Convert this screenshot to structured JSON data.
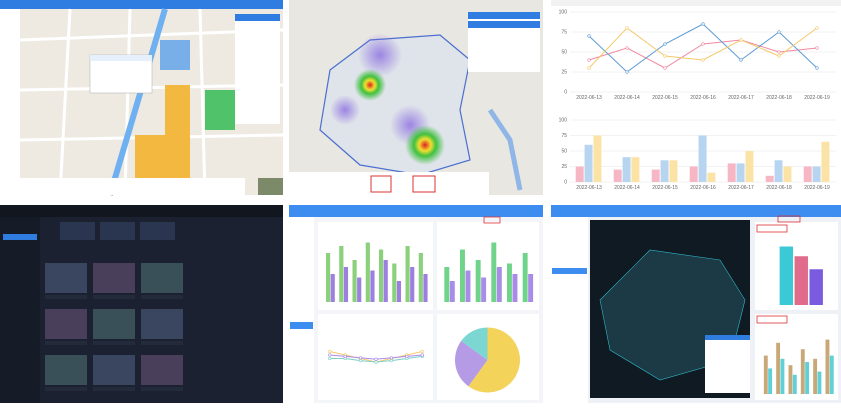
{
  "line_chart": {
    "type": "line",
    "categories": [
      "2022-06-13",
      "2022-06-14",
      "2022-06-15",
      "2022-06-16",
      "2022-06-17",
      "2022-06-18",
      "2022-06-19"
    ],
    "ylim": [
      0,
      100
    ],
    "yticks": [
      0,
      25,
      50,
      75,
      100
    ],
    "grid": true,
    "series": [
      {
        "color": "#f08aa0",
        "values": [
          40,
          55,
          30,
          60,
          65,
          50,
          55
        ]
      },
      {
        "color": "#5b9bd5",
        "values": [
          70,
          25,
          60,
          85,
          40,
          75,
          30
        ]
      },
      {
        "color": "#f5c96a",
        "values": [
          30,
          80,
          45,
          40,
          65,
          45,
          80
        ]
      }
    ]
  },
  "bar_chart": {
    "type": "bar",
    "categories": [
      "2022-06-13",
      "2022-06-14",
      "2022-06-15",
      "2022-06-16",
      "2022-06-17",
      "2022-06-18",
      "2022-06-19"
    ],
    "ylim": [
      0,
      100
    ],
    "yticks": [
      0,
      25,
      50,
      75,
      100
    ],
    "grid": true,
    "series": [
      {
        "color": "#f7b6c4",
        "values": [
          25,
          20,
          20,
          25,
          30,
          10,
          25
        ]
      },
      {
        "color": "#b7d4f0",
        "values": [
          60,
          40,
          35,
          75,
          30,
          35,
          25
        ]
      },
      {
        "color": "#fbe3a6",
        "values": [
          75,
          40,
          35,
          15,
          50,
          25,
          65
        ]
      }
    ]
  },
  "dash_bars_left": {
    "type": "bar",
    "ylim": [
      0,
      100
    ],
    "series": [
      {
        "color": "#8bd17c",
        "values": [
          70,
          80,
          60,
          85,
          75,
          55,
          80,
          70
        ]
      },
      {
        "color": "#9d7fe0",
        "values": [
          40,
          50,
          35,
          45,
          60,
          30,
          50,
          40
        ]
      }
    ]
  },
  "dash_bars_right": {
    "type": "bar",
    "ylim": [
      0,
      100
    ],
    "series": [
      {
        "color": "#6fd38a",
        "values": [
          50,
          75,
          60,
          85,
          55,
          70
        ]
      },
      {
        "color": "#a98be8",
        "values": [
          30,
          45,
          35,
          50,
          40,
          40
        ]
      }
    ]
  },
  "dash_lines": {
    "type": "line",
    "ylim": [
      0,
      100
    ],
    "series": [
      {
        "color": "#f5c96a",
        "values": [
          55,
          50,
          45,
          40,
          45,
          50,
          55
        ]
      },
      {
        "color": "#7ad0c8",
        "values": [
          45,
          45,
          42,
          40,
          42,
          45,
          48
        ]
      },
      {
        "color": "#a98be8",
        "values": [
          50,
          48,
          46,
          44,
          46,
          48,
          50
        ]
      }
    ]
  },
  "dash_pie": {
    "type": "pie",
    "values": [
      60,
      25,
      15
    ],
    "colors": [
      "#f3d35a",
      "#b59be6",
      "#7cd7d3"
    ]
  },
  "map_bars_top": {
    "type": "bar",
    "ylim": [
      0,
      100
    ],
    "series": [
      {
        "color": "#3cc9d6",
        "values": [
          90
        ]
      },
      {
        "color": "#e06b8a",
        "values": [
          75
        ]
      },
      {
        "color": "#7b5ce0",
        "values": [
          55
        ]
      }
    ]
  },
  "map_bars_bottom": {
    "type": "bar",
    "ylim": [
      0,
      100
    ],
    "series": [
      {
        "color": "#c8a878",
        "values": [
          60,
          80,
          45,
          70,
          55,
          85
        ]
      },
      {
        "color": "#5fd0d8",
        "values": [
          40,
          55,
          30,
          50,
          35,
          60
        ]
      }
    ]
  }
}
